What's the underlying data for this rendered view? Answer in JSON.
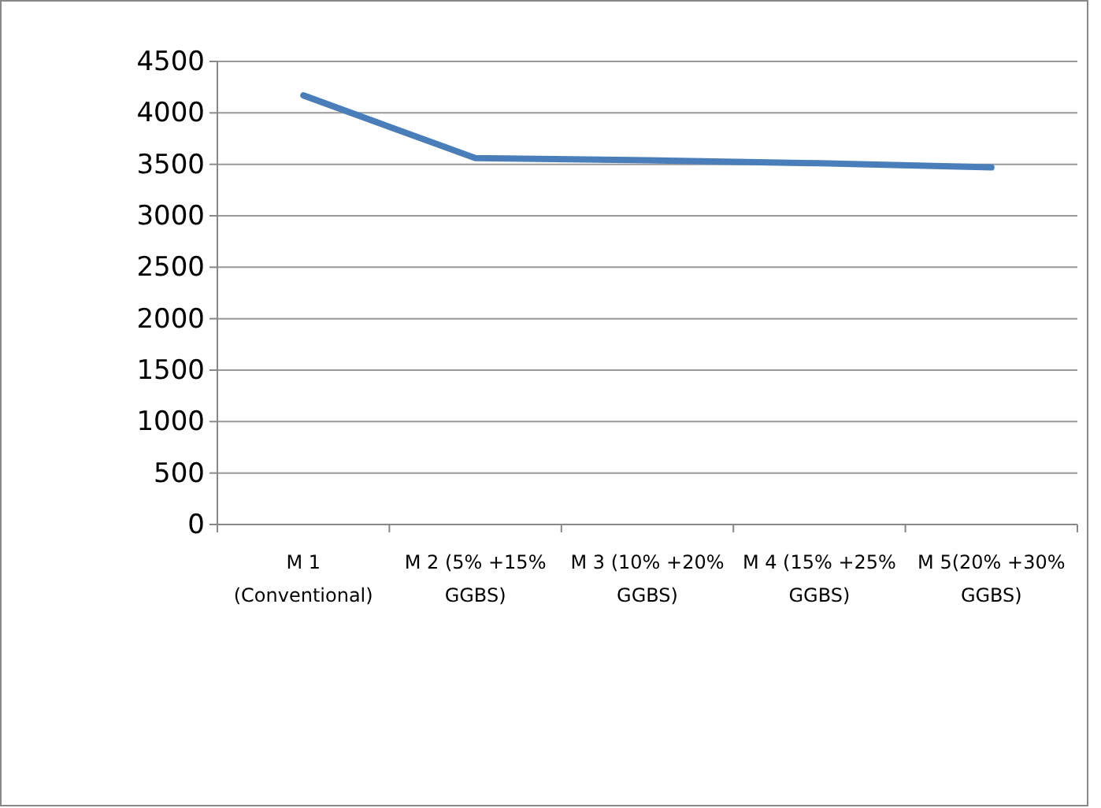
{
  "chart_data": {
    "type": "line",
    "categories": [
      "M 1 (Conventional)",
      "M 2 (5% +15% GGBS)",
      "M 3 (10% +20% GGBS)",
      "M 4 (15% +25% GGBS)",
      "M 5(20% +30% GGBS)"
    ],
    "series": [
      {
        "color": "#4a7ebb",
        "values": [
          4170,
          3560,
          3540,
          3510,
          3470
        ]
      }
    ],
    "ylim": [
      0,
      4500
    ],
    "yticks": [
      0,
      500,
      1000,
      1500,
      2000,
      2500,
      3000,
      3500,
      4000,
      4500
    ],
    "grid": "y",
    "marker": "none",
    "line_style": "solid"
  }
}
